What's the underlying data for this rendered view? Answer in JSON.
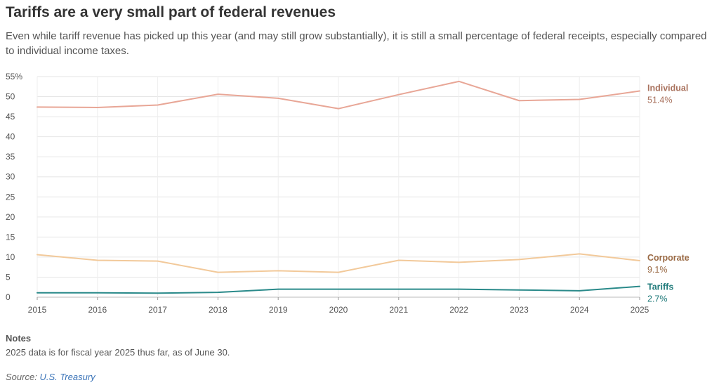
{
  "header": {
    "title": "Tariffs are a very small part of federal revenues",
    "subtitle": "Even while tariff revenue has picked up this year (and may still grow substantially), it is still a small percentage of federal receipts, especially compared to individual income taxes."
  },
  "notes": {
    "heading": "Notes",
    "text": "2025 data is for fiscal year 2025 thus far, as of June 30."
  },
  "source": {
    "label": "Source:",
    "link_text": "U.S. Treasury"
  },
  "chart_data": {
    "type": "line",
    "title": "Tariffs are a very small part of federal revenues",
    "x": [
      2015,
      2016,
      2017,
      2018,
      2019,
      2020,
      2021,
      2022,
      2023,
      2024,
      2025
    ],
    "ylim": [
      0,
      55
    ],
    "y_ticks": [
      0,
      5,
      10,
      15,
      20,
      25,
      30,
      35,
      40,
      45,
      50,
      55
    ],
    "y_tick_labels": [
      "0",
      "5",
      "10",
      "15",
      "20",
      "25",
      "30",
      "35",
      "40",
      "45",
      "50",
      "55%"
    ],
    "grid": true,
    "legend": "inline-right",
    "series": [
      {
        "name": "Individual",
        "end_label": "51.4%",
        "color": "#e8a696",
        "label_color": "#a9725e",
        "values": [
          47.4,
          47.3,
          47.9,
          50.6,
          49.6,
          47.0,
          50.5,
          53.8,
          49.0,
          49.3,
          51.4
        ]
      },
      {
        "name": "Corporate",
        "end_label": "9.1%",
        "color": "#f2c99a",
        "label_color": "#9a6a45",
        "values": [
          10.6,
          9.2,
          9.0,
          6.2,
          6.6,
          6.2,
          9.2,
          8.7,
          9.4,
          10.8,
          9.1
        ]
      },
      {
        "name": "Tariffs",
        "end_label": "2.7%",
        "color": "#2a8a8a",
        "label_color": "#1f7a7a",
        "values": [
          1.1,
          1.1,
          1.0,
          1.2,
          2.0,
          2.0,
          2.0,
          2.0,
          1.8,
          1.6,
          2.7
        ]
      }
    ]
  }
}
